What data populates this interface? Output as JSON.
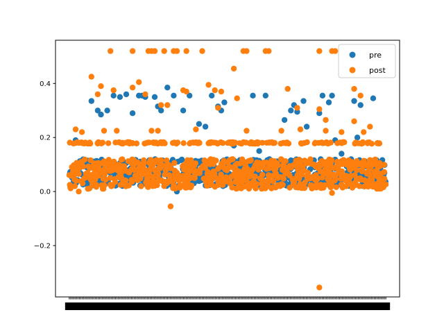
{
  "chart_data": {
    "type": "scatter",
    "title": "",
    "xlabel": "",
    "ylabel": "",
    "ylim": [
      -0.39,
      0.56
    ],
    "yticks": [
      -0.2,
      0.0,
      0.2,
      0.4
    ],
    "ytick_labels": [
      "−0.2",
      "0.0",
      "0.2",
      "0.4"
    ],
    "x_tick_labels_overlapping": true,
    "legend": {
      "placement": "top-right"
    },
    "series": [
      {
        "name": "pre",
        "color": "#1f77b4",
        "band_range": [
          0.02,
          0.12
        ],
        "points": [
          {
            "x": 0.07,
            "y": 0.335
          },
          {
            "x": 0.09,
            "y": 0.3
          },
          {
            "x": 0.1,
            "y": 0.285
          },
          {
            "x": 0.12,
            "y": 0.3
          },
          {
            "x": 0.14,
            "y": 0.355
          },
          {
            "x": 0.16,
            "y": 0.35
          },
          {
            "x": 0.18,
            "y": 0.36
          },
          {
            "x": 0.2,
            "y": 0.29
          },
          {
            "x": 0.22,
            "y": 0.355
          },
          {
            "x": 0.23,
            "y": 0.355
          },
          {
            "x": 0.24,
            "y": 0.35
          },
          {
            "x": 0.27,
            "y": 0.35
          },
          {
            "x": 0.28,
            "y": 0.315
          },
          {
            "x": 0.29,
            "y": 0.3
          },
          {
            "x": 0.31,
            "y": 0.385
          },
          {
            "x": 0.33,
            "y": 0.355
          },
          {
            "x": 0.36,
            "y": 0.3
          },
          {
            "x": 0.38,
            "y": 0.355
          },
          {
            "x": 0.41,
            "y": 0.25
          },
          {
            "x": 0.43,
            "y": 0.24
          },
          {
            "x": 0.45,
            "y": 0.355
          },
          {
            "x": 0.47,
            "y": 0.315
          },
          {
            "x": 0.48,
            "y": 0.3
          },
          {
            "x": 0.49,
            "y": 0.33
          },
          {
            "x": 0.58,
            "y": 0.355
          },
          {
            "x": 0.62,
            "y": 0.355
          },
          {
            "x": 0.68,
            "y": 0.265
          },
          {
            "x": 0.7,
            "y": 0.3
          },
          {
            "x": 0.71,
            "y": 0.32
          },
          {
            "x": 0.72,
            "y": 0.295
          },
          {
            "x": 0.74,
            "y": 0.335
          },
          {
            "x": 0.75,
            "y": 0.24
          },
          {
            "x": 0.79,
            "y": 0.29
          },
          {
            "x": 0.8,
            "y": 0.355
          },
          {
            "x": 0.82,
            "y": 0.33
          },
          {
            "x": 0.83,
            "y": 0.355
          },
          {
            "x": 0.84,
            "y": 0.19
          },
          {
            "x": 0.9,
            "y": 0.335
          },
          {
            "x": 0.91,
            "y": 0.2
          },
          {
            "x": 0.92,
            "y": 0.32
          },
          {
            "x": 0.96,
            "y": 0.345
          },
          {
            "x": 0.34,
            "y": 0.0
          },
          {
            "x": 0.02,
            "y": 0.19
          },
          {
            "x": 0.05,
            "y": 0.18
          },
          {
            "x": 0.52,
            "y": 0.17
          },
          {
            "x": 0.6,
            "y": 0.15
          },
          {
            "x": 0.86,
            "y": 0.14
          }
        ]
      },
      {
        "name": "post",
        "color": "#ff7f0e",
        "band_range": [
          0.01,
          0.12
        ],
        "level_lines": [
          0.18
        ],
        "points": [
          {
            "x": 0.13,
            "y": 0.52
          },
          {
            "x": 0.2,
            "y": 0.52
          },
          {
            "x": 0.25,
            "y": 0.52
          },
          {
            "x": 0.26,
            "y": 0.52
          },
          {
            "x": 0.27,
            "y": 0.52
          },
          {
            "x": 0.3,
            "y": 0.52
          },
          {
            "x": 0.33,
            "y": 0.52
          },
          {
            "x": 0.34,
            "y": 0.52
          },
          {
            "x": 0.37,
            "y": 0.52
          },
          {
            "x": 0.42,
            "y": 0.52
          },
          {
            "x": 0.55,
            "y": 0.52
          },
          {
            "x": 0.56,
            "y": 0.52
          },
          {
            "x": 0.62,
            "y": 0.52
          },
          {
            "x": 0.63,
            "y": 0.52
          },
          {
            "x": 0.79,
            "y": 0.52
          },
          {
            "x": 0.83,
            "y": 0.52
          },
          {
            "x": 0.84,
            "y": 0.52
          },
          {
            "x": 0.07,
            "y": 0.425
          },
          {
            "x": 0.1,
            "y": 0.39
          },
          {
            "x": 0.22,
            "y": 0.405
          },
          {
            "x": 0.2,
            "y": 0.385
          },
          {
            "x": 0.14,
            "y": 0.375
          },
          {
            "x": 0.09,
            "y": 0.36
          },
          {
            "x": 0.24,
            "y": 0.36
          },
          {
            "x": 0.36,
            "y": 0.375
          },
          {
            "x": 0.37,
            "y": 0.37
          },
          {
            "x": 0.44,
            "y": 0.395
          },
          {
            "x": 0.46,
            "y": 0.375
          },
          {
            "x": 0.48,
            "y": 0.37
          },
          {
            "x": 0.52,
            "y": 0.455
          },
          {
            "x": 0.53,
            "y": 0.345
          },
          {
            "x": 0.69,
            "y": 0.38
          },
          {
            "x": 0.9,
            "y": 0.38
          },
          {
            "x": 0.92,
            "y": 0.355
          },
          {
            "x": 0.29,
            "y": 0.32
          },
          {
            "x": 0.31,
            "y": 0.32
          },
          {
            "x": 0.47,
            "y": 0.31
          },
          {
            "x": 0.72,
            "y": 0.31
          },
          {
            "x": 0.79,
            "y": 0.305
          },
          {
            "x": 0.81,
            "y": 0.265
          },
          {
            "x": 0.9,
            "y": 0.26
          },
          {
            "x": 0.02,
            "y": 0.23
          },
          {
            "x": 0.04,
            "y": 0.22
          },
          {
            "x": 0.11,
            "y": 0.225
          },
          {
            "x": 0.15,
            "y": 0.225
          },
          {
            "x": 0.26,
            "y": 0.225
          },
          {
            "x": 0.28,
            "y": 0.225
          },
          {
            "x": 0.4,
            "y": 0.23
          },
          {
            "x": 0.56,
            "y": 0.225
          },
          {
            "x": 0.67,
            "y": 0.225
          },
          {
            "x": 0.73,
            "y": 0.23
          },
          {
            "x": 0.81,
            "y": 0.225
          },
          {
            "x": 0.86,
            "y": 0.22
          },
          {
            "x": 0.93,
            "y": 0.22
          },
          {
            "x": 0.95,
            "y": 0.24
          },
          {
            "x": 0.32,
            "y": -0.055
          },
          {
            "x": 0.79,
            "y": -0.355
          },
          {
            "x": 0.83,
            "y": -0.005
          },
          {
            "x": 0.03,
            "y": 0.0
          }
        ]
      }
    ]
  }
}
